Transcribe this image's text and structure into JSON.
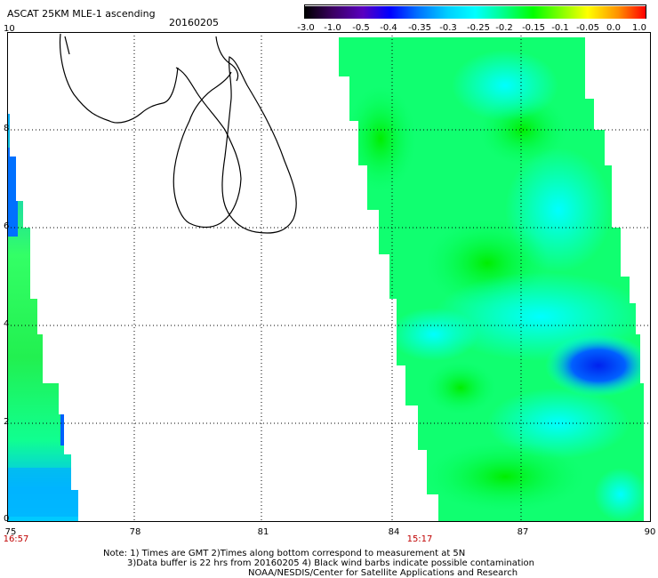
{
  "title": "ASCAT 25KM MLE-1 ascending",
  "date": "20160205",
  "colorbar": {
    "labels": [
      "-3.0",
      "-1.0",
      "-0.5",
      "-0.4",
      "-0.35",
      "-0.3",
      "-0.25",
      "-0.2",
      "-0.15",
      "-0.1",
      "-0.05",
      "0.0",
      "1.0"
    ],
    "colors": [
      "#000000",
      "#5a00a0",
      "#0000ff",
      "#0070ff",
      "#00c8ff",
      "#00ffff",
      "#00ff80",
      "#00ff00",
      "#a0ff00",
      "#ffff00",
      "#ff8000",
      "#ff0000"
    ]
  },
  "axes": {
    "y_labels": [
      "10",
      "8",
      "6",
      "4",
      "2",
      "0"
    ],
    "x_labels": [
      "75",
      "78",
      "81",
      "84",
      "87",
      "90"
    ]
  },
  "times": [
    "16:57",
    "15:17"
  ],
  "notes": [
    "Note: 1) Times are GMT 2)Times along bottom correspond to measurement at 5N",
    "3)Data buffer is 22 hrs from 20160205 4) Black wind barbs indicate possible contamination",
    "NOAA/NESDIS/Center for Satellite Applications and Research"
  ]
}
